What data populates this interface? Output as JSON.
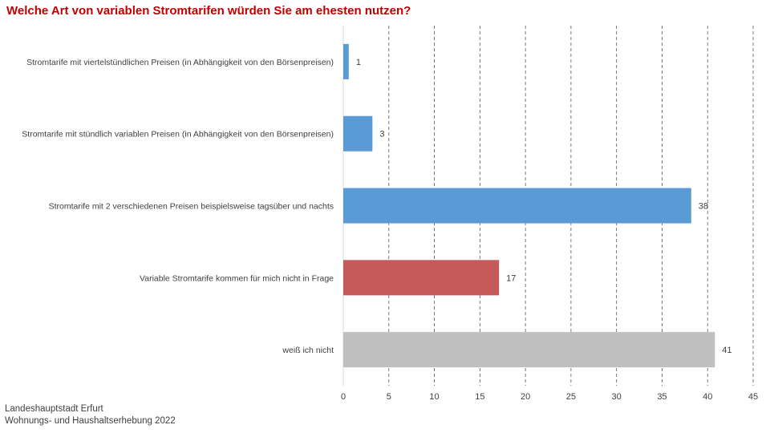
{
  "title": "Welche Art von variablen Stromtarifen würden Sie am ehesten nutzen?",
  "footer": {
    "line1": "Landeshauptstadt Erfurt",
    "line2": "Wohnungs- und Haushaltserhebung 2022"
  },
  "chart_data": {
    "type": "bar",
    "orientation": "horizontal",
    "categories": [
      "Stromtarife mit viertelstündlichen Preisen (in Abhängigkeit von den Börsenpreisen)",
      "Stromtarife mit stündlich variablen Preisen (in Abhängigkeit von den Börsenpreisen)",
      "Stromtarife mit 2 verschiedenen Preisen beispielsweise tagsüber und nachts",
      "Variable Stromtarife kommen für mich nicht in Frage",
      "weiß ich nicht"
    ],
    "values": [
      0.6,
      3.2,
      38.2,
      17.1,
      40.8
    ],
    "data_labels": [
      "1",
      "3",
      "38",
      "17",
      "41"
    ],
    "colors": [
      "#5b9bd5",
      "#5b9bd5",
      "#5b9bd5",
      "#c55a5a",
      "#bfbfbf"
    ],
    "xlim": [
      0,
      45
    ],
    "xticks": [
      0,
      5,
      10,
      15,
      20,
      25,
      30,
      35,
      40,
      45
    ],
    "grid": "vertical dashed",
    "xlabel": "",
    "ylabel": ""
  }
}
